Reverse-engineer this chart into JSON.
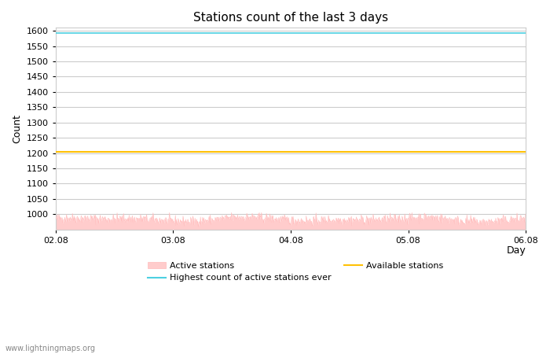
{
  "title": "Stations count of the last 3 days",
  "xlabel": "Day",
  "ylabel": "Count",
  "ylim": [
    950,
    1610
  ],
  "yticks": [
    1000,
    1050,
    1100,
    1150,
    1200,
    1250,
    1300,
    1350,
    1400,
    1450,
    1500,
    1550,
    1600
  ],
  "xtick_labels": [
    "02.08",
    "03.08",
    "04.08",
    "05.08",
    "06.08"
  ],
  "xtick_positions": [
    0.0,
    0.25,
    0.5,
    0.75,
    1.0
  ],
  "highest_ever": 1594,
  "available_stations": 1205,
  "active_stations_mean": 983,
  "active_stations_noise": 8,
  "active_fill_color": "#ffcccc",
  "active_line_color": "#ffaaaa",
  "highest_line_color": "#4dd0e1",
  "available_line_color": "#ffc107",
  "background_color": "#ffffff",
  "grid_color": "#cccccc",
  "watermark": "www.lightningmaps.org",
  "num_points": 864,
  "legend_labels": [
    "Active stations",
    "Highest count of active stations ever",
    "Available stations"
  ],
  "legend_colors": [
    "#ffcccc",
    "#4dd0e1",
    "#ffc107"
  ],
  "title_fontsize": 11,
  "axis_label_fontsize": 9,
  "tick_fontsize": 8
}
